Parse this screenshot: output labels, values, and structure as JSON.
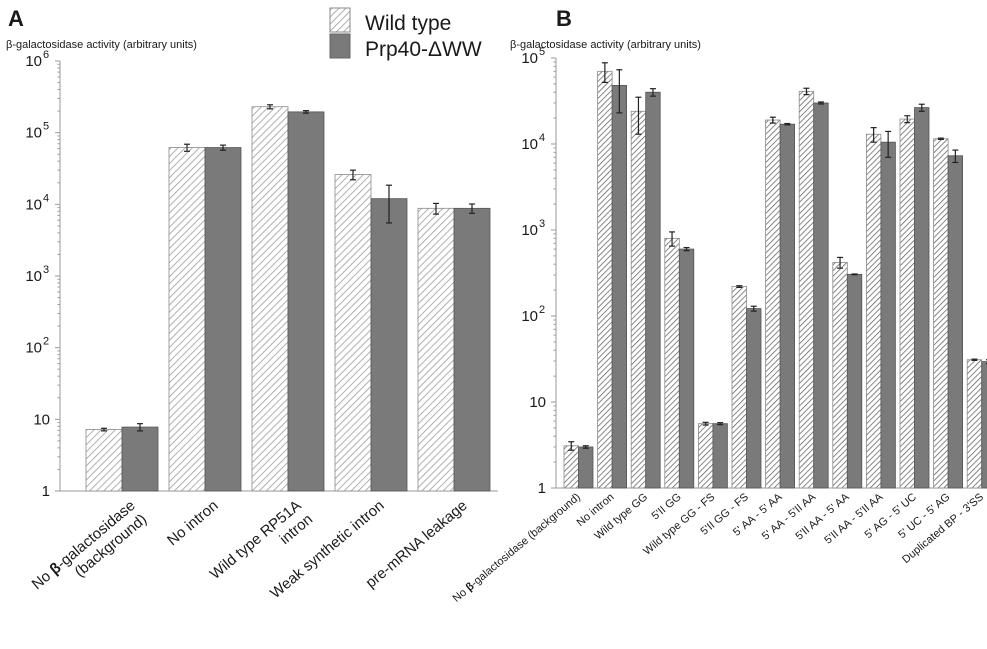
{
  "legend": [
    {
      "label": "Wild type",
      "pattern": "hatched",
      "color": "#ffffff"
    },
    {
      "label": "Prp40-ΔWW",
      "pattern": "solid",
      "color": "#7a7a7a"
    }
  ],
  "chart_data": [
    {
      "panel": "A",
      "type": "bar",
      "ylabel": "β-galactosidase activity (arbitrary units)",
      "yscale": "log",
      "ylim": [
        1,
        1000000
      ],
      "yticks": [
        {
          "value": 1,
          "base": "1",
          "exp": ""
        },
        {
          "value": 10,
          "base": "10",
          "exp": ""
        },
        {
          "value": 100,
          "base": "10",
          "exp": "2"
        },
        {
          "value": 1000,
          "base": "10",
          "exp": "3"
        },
        {
          "value": 10000,
          "base": "10",
          "exp": "4"
        },
        {
          "value": 100000,
          "base": "10",
          "exp": "5"
        },
        {
          "value": 1000000,
          "base": "10",
          "exp": "6"
        }
      ],
      "categories": [
        {
          "lines": [
            [
              "No ",
              "β",
              "-galactosidase"
            ],
            [
              "(background)"
            ]
          ]
        },
        {
          "lines": [
            [
              "No intron"
            ]
          ]
        },
        {
          "lines": [
            [
              "Wild type RP51A"
            ],
            [
              "intron"
            ]
          ]
        },
        {
          "lines": [
            [
              "Weak synthetic intron"
            ]
          ]
        },
        {
          "lines": [
            [
              "pre-mRNA leakage"
            ]
          ]
        }
      ],
      "series": [
        {
          "name": "Wild type",
          "values": [
            7.2,
            62000,
            230000,
            26000,
            8800
          ],
          "errors": [
            0.3,
            7000,
            15000,
            4000,
            1500
          ]
        },
        {
          "name": "Prp40-ΔWW",
          "values": [
            7.8,
            62000,
            195000,
            12000,
            8800
          ],
          "errors": [
            0.9,
            5000,
            8000,
            6500,
            1300
          ]
        }
      ]
    },
    {
      "panel": "B",
      "type": "bar",
      "ylabel": "β-galactosidase activity (arbitrary units)",
      "yscale": "log",
      "ylim": [
        1,
        100000
      ],
      "yticks": [
        {
          "value": 1,
          "base": "1",
          "exp": ""
        },
        {
          "value": 10,
          "base": "10",
          "exp": ""
        },
        {
          "value": 100,
          "base": "10",
          "exp": "2"
        },
        {
          "value": 1000,
          "base": "10",
          "exp": "3"
        },
        {
          "value": 10000,
          "base": "10",
          "exp": "4"
        },
        {
          "value": 100000,
          "base": "10",
          "exp": "5"
        }
      ],
      "categories": [
        {
          "lines": [
            [
              "No ",
              "β",
              "-galactosidase (background)"
            ]
          ]
        },
        {
          "lines": [
            [
              "No intron"
            ]
          ]
        },
        {
          "lines": [
            [
              "Wild type GG"
            ]
          ]
        },
        {
          "lines": [
            [
              "5'II GG"
            ]
          ]
        },
        {
          "lines": [
            [
              "Wild type GG - FS"
            ]
          ]
        },
        {
          "lines": [
            [
              "5'II GG - FS"
            ]
          ]
        },
        {
          "lines": [
            [
              "5' AA - 5' AA"
            ]
          ]
        },
        {
          "lines": [
            [
              "5' AA - 5'II AA"
            ]
          ]
        },
        {
          "lines": [
            [
              "5'II AA - 5' AA"
            ]
          ]
        },
        {
          "lines": [
            [
              "5'II AA - 5'II AA"
            ]
          ]
        },
        {
          "lines": [
            [
              "5' AG - 5' UC"
            ]
          ]
        },
        {
          "lines": [
            [
              "5' UC - 5' AG"
            ]
          ]
        },
        {
          "lines": [
            [
              "Duplicated BP - 3'SS"
            ]
          ]
        }
      ],
      "series": [
        {
          "name": "Wild type",
          "values": [
            3.1,
            70000,
            24000,
            800,
            5.6,
            220,
            19000,
            41000,
            420,
            13000,
            19500,
            11500,
            31
          ],
          "errors": [
            0.35,
            18000,
            11000,
            150,
            0.2,
            5,
            1500,
            3500,
            60,
            2500,
            1800,
            200,
            0.5
          ]
        },
        {
          "name": "Prp40-ΔWW",
          "values": [
            3.0,
            48000,
            40000,
            600,
            5.6,
            122,
            17000,
            30000,
            305,
            10500,
            26500,
            7300,
            29.5
          ],
          "errors": [
            0.1,
            25000,
            4000,
            25,
            0.15,
            8,
            300,
            800,
            3,
            3500,
            2500,
            1200,
            1.5
          ]
        }
      ]
    }
  ]
}
